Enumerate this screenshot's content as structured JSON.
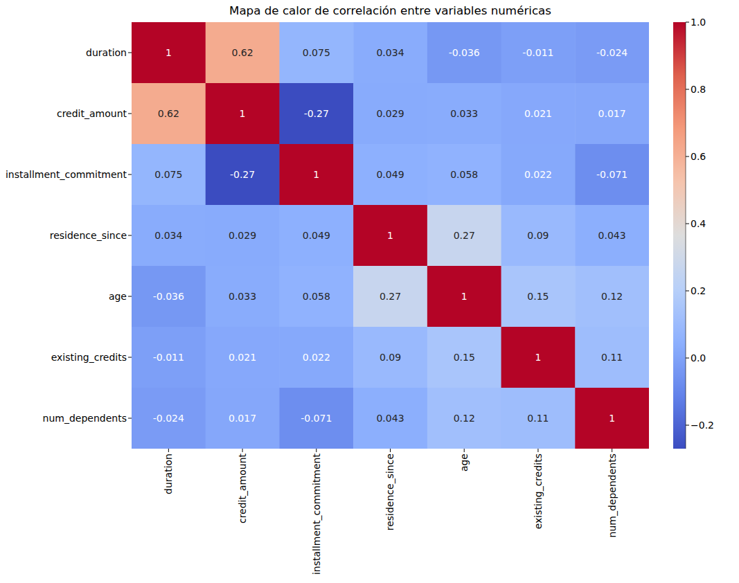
{
  "chart_data": {
    "type": "heatmap",
    "title": "Mapa de calor de correlación entre variables numéricas",
    "categories": [
      "duration",
      "credit_amount",
      "installment_commitment",
      "residence_since",
      "age",
      "existing_credits",
      "num_dependents"
    ],
    "cells": [
      [
        1,
        0.62,
        0.075,
        0.034,
        -0.036,
        -0.011,
        -0.024
      ],
      [
        0.62,
        1,
        -0.27,
        0.029,
        0.033,
        0.021,
        0.017
      ],
      [
        0.075,
        -0.27,
        1,
        0.049,
        0.058,
        0.022,
        -0.071
      ],
      [
        0.034,
        0.029,
        0.049,
        1,
        0.27,
        0.09,
        0.043
      ],
      [
        -0.036,
        0.033,
        0.058,
        0.27,
        1,
        0.15,
        0.12
      ],
      [
        -0.011,
        0.021,
        0.022,
        0.09,
        0.15,
        1,
        0.11
      ],
      [
        -0.024,
        0.017,
        -0.071,
        0.043,
        0.12,
        0.11,
        1
      ]
    ],
    "colorbar_range": [
      -0.27,
      1
    ],
    "colorbar_ticks": [
      {
        "value": -0.2,
        "label": "−0.2"
      },
      {
        "value": 0,
        "label": "0.0"
      },
      0.2,
      0.4,
      0.6,
      0.8,
      {
        "value": 1,
        "label": "1.0"
      }
    ],
    "data_labels": true
  }
}
